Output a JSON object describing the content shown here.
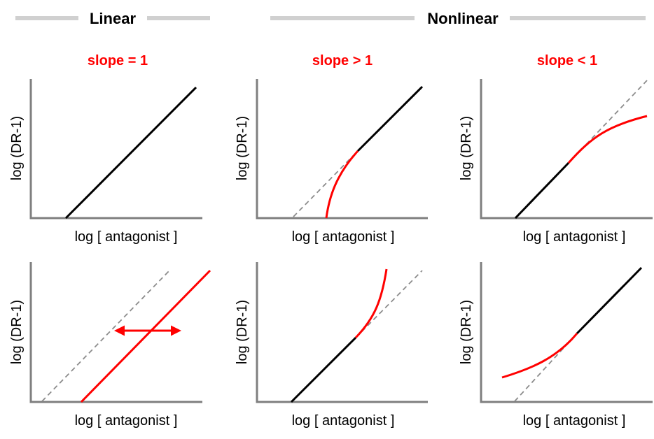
{
  "headers": {
    "linear": "Linear",
    "nonlinear": "Nonlinear"
  },
  "columns": [
    {
      "slope_label": "slope = 1"
    },
    {
      "slope_label": "slope > 1"
    },
    {
      "slope_label": "slope < 1"
    }
  ],
  "panels": [
    {
      "xlabel": "log [ antagonist ]",
      "ylabel": "log (DR-1)"
    },
    {
      "xlabel": "log [ antagonist ]",
      "ylabel": "log (DR-1)"
    },
    {
      "xlabel": "log [ antagonist ]",
      "ylabel": "log (DR-1)"
    },
    {
      "xlabel": "log [ antagonist ]",
      "ylabel": "log (DR-1)"
    },
    {
      "xlabel": "log [ antagonist ]",
      "ylabel": "log (DR-1)"
    },
    {
      "xlabel": "log [ antagonist ]",
      "ylabel": "log (DR-1)"
    }
  ],
  "colors": {
    "highlight": "#ff0000",
    "line": "#000000",
    "reference": "#8c8c8c",
    "axis": "#7f7f7f",
    "header_bar": "#d0d0d0"
  }
}
